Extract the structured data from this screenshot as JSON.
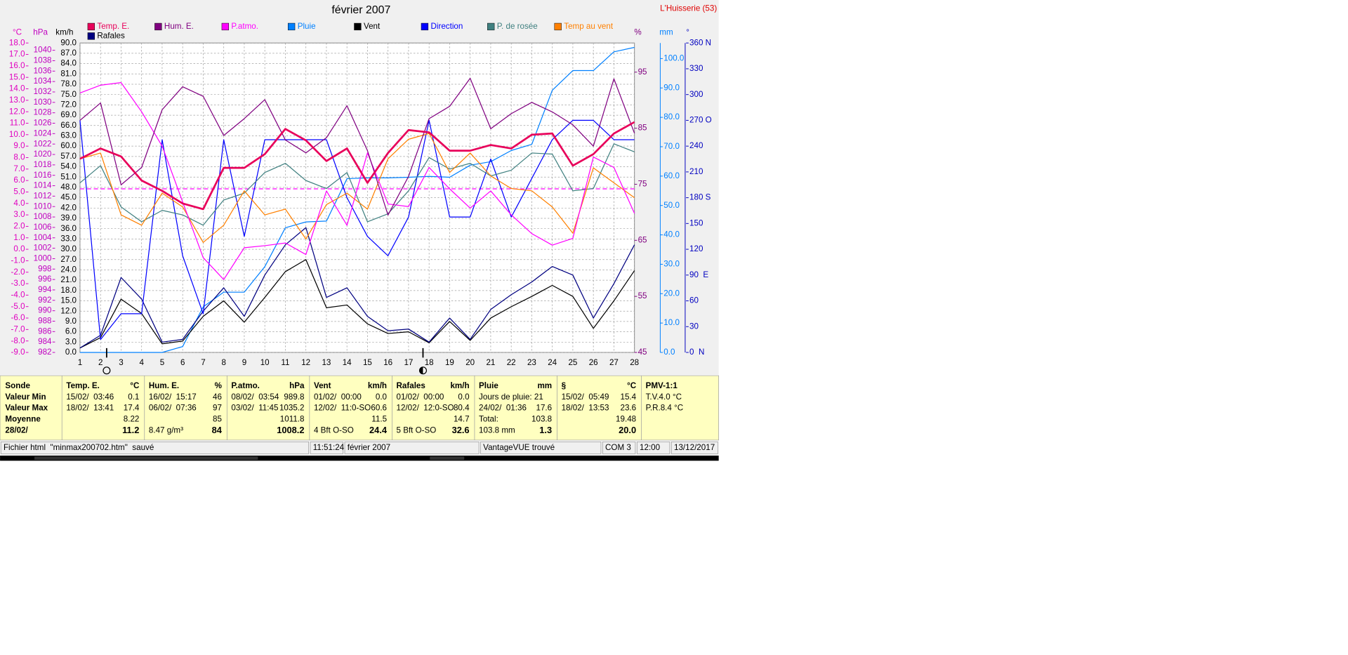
{
  "chart_data": {
    "type": "line",
    "title": "février 2007",
    "station": "L'Huisserie (53)",
    "x": [
      1,
      2,
      3,
      4,
      5,
      6,
      7,
      8,
      9,
      10,
      11,
      12,
      13,
      14,
      15,
      16,
      17,
      18,
      19,
      20,
      21,
      22,
      23,
      24,
      25,
      26,
      27,
      28
    ],
    "xlim": [
      1,
      28
    ],
    "xticks": [
      1,
      2,
      3,
      4,
      5,
      6,
      7,
      8,
      9,
      10,
      11,
      12,
      13,
      14,
      15,
      16,
      17,
      18,
      19,
      20,
      21,
      22,
      23,
      24,
      25,
      26,
      27,
      28
    ],
    "grid": true,
    "axes": [
      {
        "label": "°C",
        "color": "#e000c0",
        "lim": [
          -9,
          18
        ],
        "ticks": [
          {
            "value": -9,
            "label": "-9.0"
          },
          {
            "value": -8,
            "label": "-8.0"
          },
          {
            "value": -7,
            "label": "-7.0"
          },
          {
            "value": -6,
            "label": "-6.0"
          },
          {
            "value": -5,
            "label": "-5.0"
          },
          {
            "value": -4,
            "label": "-4.0"
          },
          {
            "value": -3,
            "label": "-3.0"
          },
          {
            "value": -2,
            "label": "-2.0"
          },
          {
            "value": -1,
            "label": "-1.0"
          },
          {
            "value": 0,
            "label": "0.0"
          },
          {
            "value": 1,
            "label": "1.0"
          },
          {
            "value": 2,
            "label": "2.0"
          },
          {
            "value": 3,
            "label": "3.0"
          },
          {
            "value": 4,
            "label": "4.0"
          },
          {
            "value": 5,
            "label": "5.0"
          },
          {
            "value": 6,
            "label": "6.0"
          },
          {
            "value": 7,
            "label": "7.0"
          },
          {
            "value": 8,
            "label": "8.0"
          },
          {
            "value": 9,
            "label": "9.0"
          },
          {
            "value": 10,
            "label": "10.0"
          },
          {
            "value": 11,
            "label": "11.0"
          },
          {
            "value": 12,
            "label": "12.0"
          },
          {
            "value": 13,
            "label": "13.0"
          },
          {
            "value": 14,
            "label": "14.0"
          },
          {
            "value": 15,
            "label": "15.0"
          },
          {
            "value": 16,
            "label": "16.0"
          },
          {
            "value": 17,
            "label": "17.0"
          },
          {
            "value": 18,
            "label": "18.0"
          }
        ]
      },
      {
        "label": "hPa",
        "color": "#c000c0",
        "lim": [
          982,
          1041.4
        ],
        "ticks": [
          982,
          984,
          986,
          988,
          990,
          992,
          994,
          996,
          998,
          1000,
          1002,
          1004,
          1006,
          1008,
          1010,
          1012,
          1014,
          1016,
          1018,
          1020,
          1022,
          1024,
          1026,
          1028,
          1030,
          1032,
          1034,
          1036,
          1038,
          1040
        ]
      },
      {
        "label": "km/h",
        "color": "#000000",
        "lim": [
          0,
          90
        ],
        "ticks": [
          {
            "value": 0,
            "label": "0.0"
          },
          {
            "value": 3,
            "label": "3.0"
          },
          {
            "value": 6,
            "label": "6.0"
          },
          {
            "value": 9,
            "label": "9.0"
          },
          {
            "value": 12,
            "label": "12.0"
          },
          {
            "value": 15,
            "label": "15.0"
          },
          {
            "value": 18,
            "label": "18.0"
          },
          {
            "value": 21,
            "label": "21.0"
          },
          {
            "value": 24,
            "label": "24.0"
          },
          {
            "value": 27,
            "label": "27.0"
          },
          {
            "value": 30,
            "label": "30.0"
          },
          {
            "value": 33,
            "label": "33.0"
          },
          {
            "value": 36,
            "label": "36.0"
          },
          {
            "value": 39,
            "label": "39.0"
          },
          {
            "value": 42,
            "label": "42.0"
          },
          {
            "value": 45,
            "label": "45.0"
          },
          {
            "value": 48,
            "label": "48.0"
          },
          {
            "value": 51,
            "label": "51.0"
          },
          {
            "value": 54,
            "label": "54.0"
          },
          {
            "value": 57,
            "label": "57.0"
          },
          {
            "value": 60,
            "label": "60.0"
          },
          {
            "value": 63,
            "label": "63.0"
          },
          {
            "value": 66,
            "label": "66.0"
          },
          {
            "value": 69,
            "label": "69.0"
          },
          {
            "value": 72,
            "label": "72.0"
          },
          {
            "value": 75,
            "label": "75.0"
          },
          {
            "value": 78,
            "label": "78.0"
          },
          {
            "value": 81,
            "label": "81.0"
          },
          {
            "value": 84,
            "label": "84.0"
          },
          {
            "value": 87,
            "label": "87.0"
          },
          {
            "value": 90,
            "label": "90.0"
          }
        ]
      },
      {
        "label": "%",
        "color": "#800080",
        "lim": [
          45,
          100.2
        ],
        "ticks": [
          45,
          55,
          65,
          75,
          85,
          95
        ]
      },
      {
        "label": "mm",
        "color": "#0080ff",
        "lim": [
          0,
          105.3
        ],
        "ticks": [
          {
            "value": 0,
            "label": "0.0"
          },
          {
            "value": 10,
            "label": "10.0"
          },
          {
            "value": 20,
            "label": "20.0"
          },
          {
            "value": 30,
            "label": "30.0"
          },
          {
            "value": 40,
            "label": "40.0"
          },
          {
            "value": 50,
            "label": "50.0"
          },
          {
            "value": 60,
            "label": "60.0"
          },
          {
            "value": 70,
            "label": "70.0"
          },
          {
            "value": 80,
            "label": "80.0"
          },
          {
            "value": 90,
            "label": "90.0"
          },
          {
            "value": 100,
            "label": "100.0"
          }
        ]
      },
      {
        "label": "°",
        "color": "#0000c0",
        "lim": [
          0,
          360
        ],
        "ticks": [
          {
            "value": 0,
            "label": "0  N"
          },
          30,
          60,
          {
            "value": 90,
            "label": "90  E"
          },
          120,
          150,
          {
            "value": 180,
            "label": "180 S"
          },
          210,
          240,
          {
            "value": 270,
            "label": "270 O"
          },
          300,
          330,
          {
            "value": 360,
            "label": "360 N"
          }
        ]
      }
    ],
    "reference_line": {
      "axis": 1,
      "value": 1013.4,
      "color": "#ff00ff"
    },
    "series": [
      {
        "name": "Temp. E.",
        "color": "#e8005a",
        "axis": 0,
        "width": 2.2,
        "values": [
          7.9,
          8.8,
          8.1,
          6.0,
          5.1,
          4.0,
          3.5,
          7.1,
          7.1,
          8.3,
          10.5,
          9.5,
          7.7,
          8.8,
          5.8,
          8.4,
          10.4,
          10.2,
          8.6,
          8.6,
          9.1,
          8.8,
          10.0,
          10.1,
          7.3,
          8.3,
          10.1,
          11.1
        ]
      },
      {
        "name": "Hum. E.",
        "color": "#800080",
        "axis": 3,
        "width": 1,
        "values": [
          86.4,
          89.5,
          74.9,
          78.0,
          88.3,
          92.4,
          90.7,
          83.7,
          86.7,
          90.1,
          82.9,
          80.6,
          83.3,
          89.0,
          81.0,
          69.5,
          76.4,
          86.7,
          88.9,
          93.9,
          84.9,
          87.6,
          89.6,
          87.9,
          85.6,
          81.8,
          93.8,
          84.1
        ]
      },
      {
        "name": "P.atmo.",
        "color": "#ff00ff",
        "axis": 1,
        "width": 1,
        "values": [
          1031.8,
          1033.3,
          1033.8,
          1028.2,
          1021.6,
          1010.9,
          1000.2,
          996.0,
          1002.1,
          1002.5,
          1003.0,
          1000.8,
          1013.0,
          1006.4,
          1020.3,
          1010.5,
          1010.0,
          1017.5,
          1013.4,
          1009.7,
          1013.0,
          1008.4,
          1004.8,
          1002.6,
          1003.9,
          1019.5,
          1017.5,
          1008.7
        ]
      },
      {
        "name": "Pluie",
        "color": "#0080ff",
        "axis": 4,
        "width": 1,
        "values": [
          0,
          0,
          0,
          0,
          0,
          2.0,
          15.5,
          20.5,
          20.5,
          29.2,
          42.4,
          44.4,
          44.7,
          59.1,
          59.4,
          59.4,
          59.6,
          59.9,
          59.6,
          63.7,
          64.9,
          68.7,
          70.8,
          89.2,
          95.9,
          95.9,
          102.3,
          103.8
        ]
      },
      {
        "name": "Vent",
        "color": "#000000",
        "axis": 2,
        "width": 1,
        "values": [
          1.3,
          4.3,
          15.5,
          11.3,
          2.5,
          3.3,
          10.5,
          15.0,
          8.8,
          16.0,
          23.5,
          27.0,
          13.0,
          13.8,
          8.3,
          5.5,
          6.0,
          2.8,
          9.0,
          3.5,
          10.0,
          13.3,
          16.3,
          19.5,
          16.3,
          7.0,
          15.0,
          23.8
        ]
      },
      {
        "name": "Direction",
        "color": "#0000ff",
        "axis": 5,
        "width": 1,
        "values": [
          270,
          15,
          45,
          45,
          247.5,
          112.5,
          45,
          247.5,
          135,
          247.5,
          247.5,
          247.5,
          247.5,
          180,
          135,
          112.5,
          157.5,
          270,
          157.5,
          157.5,
          225,
          157.5,
          202.5,
          247.5,
          270,
          270,
          247.5,
          247.5
        ]
      },
      {
        "name": "P. de rosée",
        "color": "#408080",
        "axis": 0,
        "width": 1,
        "values": [
          5.8,
          7.3,
          3.7,
          2.4,
          3.4,
          3.0,
          2.1,
          4.3,
          4.9,
          6.7,
          7.5,
          6.0,
          5.3,
          6.7,
          2.4,
          3.1,
          5.1,
          8.0,
          7.0,
          7.5,
          6.4,
          6.9,
          8.4,
          8.3,
          5.1,
          5.3,
          9.2,
          8.5
        ]
      },
      {
        "name": "Temp au vent",
        "color": "#ff8000",
        "axis": 0,
        "width": 1,
        "values": [
          7.9,
          8.4,
          3.0,
          2.1,
          4.9,
          3.7,
          0.6,
          2.1,
          5.1,
          3.0,
          3.5,
          0.9,
          3.9,
          4.9,
          3.5,
          7.9,
          9.6,
          10.1,
          6.7,
          8.4,
          6.4,
          5.3,
          5.1,
          3.7,
          1.4,
          7.1,
          5.8,
          4.5
        ]
      },
      {
        "name": "Rafales",
        "color": "#000080",
        "axis": 2,
        "width": 1,
        "values": [
          1.3,
          5.0,
          21.8,
          15.5,
          3.0,
          3.8,
          12.0,
          18.8,
          10.5,
          22.5,
          31.3,
          36.3,
          16.0,
          18.8,
          10.5,
          6.3,
          6.8,
          3.0,
          10.0,
          3.8,
          12.5,
          16.8,
          20.5,
          25.0,
          22.5,
          10.0,
          20.0,
          31.3
        ]
      }
    ]
  },
  "table": {
    "corner": "Sonde",
    "columns": [
      {
        "title": "Temp. E.",
        "unit": "°C"
      },
      {
        "title": "Hum. E.",
        "unit": "%"
      },
      {
        "title": "P.atmo.",
        "unit": "hPa"
      },
      {
        "title": "Vent",
        "unit": "km/h"
      },
      {
        "title": "Rafales",
        "unit": "km/h"
      },
      {
        "title": "Pluie",
        "unit": "mm"
      },
      {
        "title": "§",
        "unit": "°C"
      },
      {
        "title": "PMV-1:1"
      }
    ],
    "rows": [
      {
        "label": "Valeur Min",
        "cells": [
          {
            "left": "15/02/  03:46",
            "right": "0.1"
          },
          {
            "left": "16/02/  15:17",
            "right": "46"
          },
          {
            "left": "08/02/  03:54",
            "right": "989.8"
          },
          {
            "left": "01/02/  00:00",
            "right": "0.0"
          },
          {
            "left": "01/02/  00:00",
            "right": "0.0"
          },
          {
            "left": "Jours de pluie: 21"
          },
          {
            "left": "15/02/  05:49",
            "right": "15.4"
          },
          {
            "left": "T.V.4.0 °C"
          }
        ]
      },
      {
        "label": "Valeur Max",
        "cells": [
          {
            "left": "18/02/  13:41",
            "right": "17.4"
          },
          {
            "left": "06/02/  07:36",
            "right": "97"
          },
          {
            "left": "03/02/  11:45",
            "right": "1035.2"
          },
          {
            "left": "12/02/  11:0-SO",
            "right": "60.6"
          },
          {
            "left": "12/02/  12:0-SO",
            "right": "80.4"
          },
          {
            "left": "24/02/  01:36",
            "right": "17.6"
          },
          {
            "left": "18/02/  13:53",
            "right": "23.6"
          },
          {
            "left": "P.R.8.4 °C"
          }
        ]
      },
      {
        "label": "Moyenne",
        "cells": [
          {
            "right": "8.22"
          },
          {
            "right": "85"
          },
          {
            "right": "1011.8"
          },
          {
            "right": "11.5"
          },
          {
            "right": "14.7"
          },
          {
            "left": "Total:",
            "right": "103.8"
          },
          {
            "right": "19.48"
          }
        ]
      },
      {
        "label": "28/02/",
        "cells": [
          {
            "right": "11.2"
          },
          {
            "left": "8.47 g/m³",
            "right": "84"
          },
          {
            "right": "1008.2"
          },
          {
            "left": "4 Bft O-SO",
            "right": "24.4"
          },
          {
            "left": "5 Bft O-SO",
            "right": "32.6"
          },
          {
            "left": "103.8 mm",
            "right": "1.3"
          },
          {
            "right": "20.0"
          }
        ]
      }
    ]
  },
  "status_bar": [
    "Fichier html  \"minmax200702.htm\"  sauvé",
    "11:51:24",
    "février 2007",
    "VantageVUE trouvé",
    "COM 3",
    "12:00",
    "13/12/2017"
  ]
}
